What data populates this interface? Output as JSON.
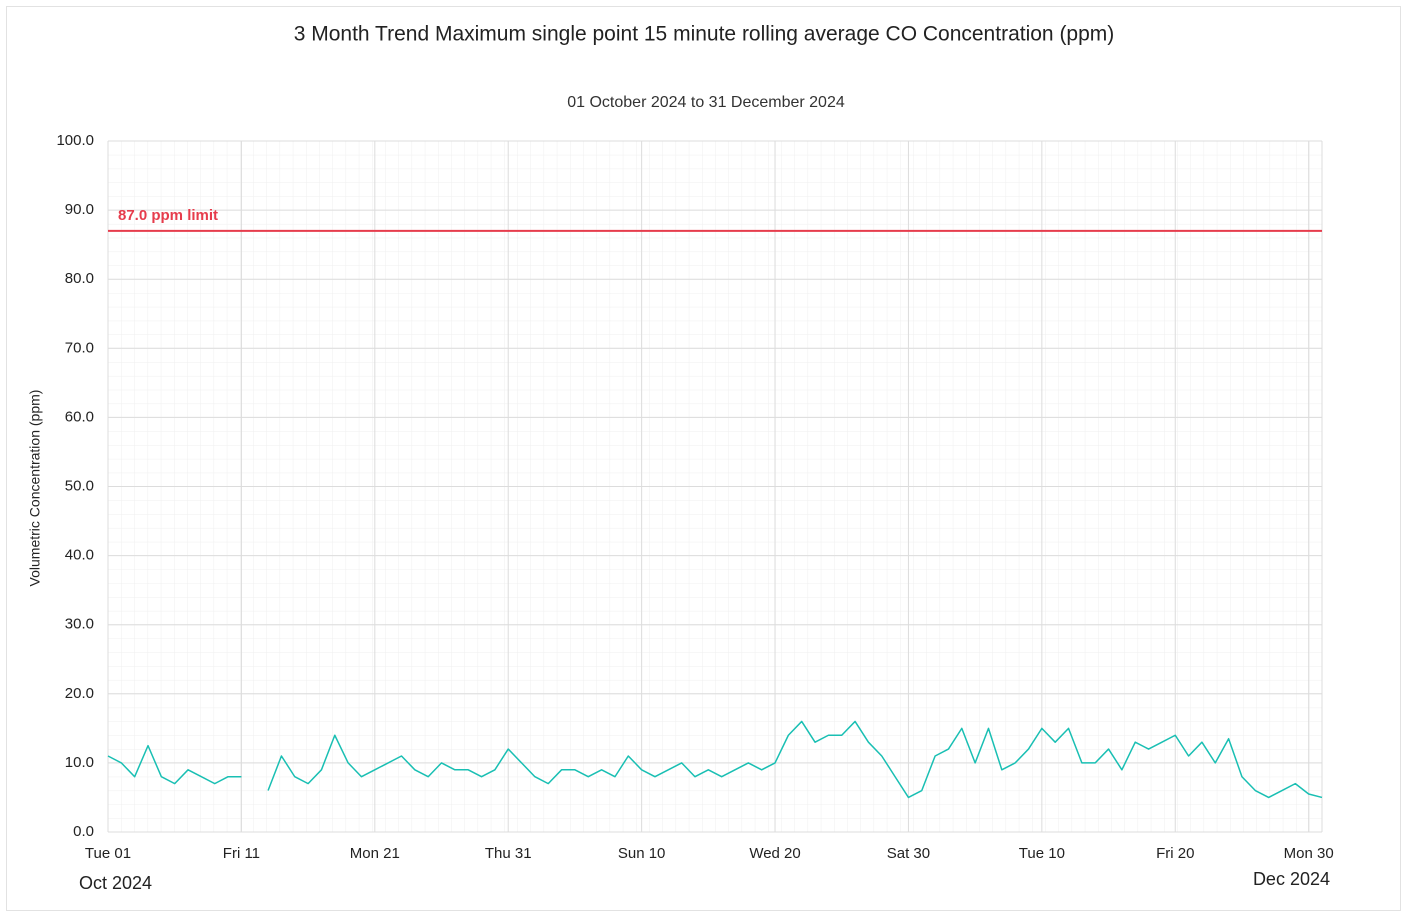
{
  "chart_data": {
    "type": "line",
    "title": "3 Month Trend Maximum single point 15 minute rolling average CO Concentration (ppm)",
    "subtitle": "01 October 2024 to 31 December 2024",
    "ylabel": "Volumetric Concentration (ppm)",
    "x_start_period": "Oct 2024",
    "x_end_period": "Dec 2024",
    "xlim": [
      "2024-10-01",
      "2024-12-31"
    ],
    "xticks": [
      {
        "value": "2024-10-01",
        "label": "Tue 01"
      },
      {
        "value": "2024-10-11",
        "label": "Fri 11"
      },
      {
        "value": "2024-10-21",
        "label": "Mon 21"
      },
      {
        "value": "2024-10-31",
        "label": "Thu 31"
      },
      {
        "value": "2024-11-10",
        "label": "Sun 10"
      },
      {
        "value": "2024-11-20",
        "label": "Wed 20"
      },
      {
        "value": "2024-11-30",
        "label": "Sat 30"
      },
      {
        "value": "2024-12-10",
        "label": "Tue 10"
      },
      {
        "value": "2024-12-20",
        "label": "Fri 20"
      },
      {
        "value": "2024-12-30",
        "label": "Mon 30"
      }
    ],
    "ylim": [
      0,
      100
    ],
    "yticks": [
      {
        "value": 0,
        "label": "0.0"
      },
      {
        "value": 10,
        "label": "10.0"
      },
      {
        "value": 20,
        "label": "20.0"
      },
      {
        "value": 30,
        "label": "30.0"
      },
      {
        "value": 40,
        "label": "40.0"
      },
      {
        "value": 50,
        "label": "50.0"
      },
      {
        "value": 60,
        "label": "60.0"
      },
      {
        "value": 70,
        "label": "70.0"
      },
      {
        "value": 80,
        "label": "80.0"
      },
      {
        "value": 90,
        "label": "90.0"
      },
      {
        "value": 100,
        "label": "100.0"
      }
    ],
    "grid": true,
    "reference_lines": [
      {
        "value": 87,
        "label": "87.0 ppm limit",
        "color": "#e63c4c"
      }
    ],
    "color": "#19bfb3",
    "x": [
      "2024-10-01",
      "2024-10-02",
      "2024-10-03",
      "2024-10-04",
      "2024-10-05",
      "2024-10-06",
      "2024-10-07",
      "2024-10-08",
      "2024-10-09",
      "2024-10-10",
      "2024-10-11",
      "2024-10-12",
      "2024-10-13",
      "2024-10-14",
      "2024-10-15",
      "2024-10-16",
      "2024-10-17",
      "2024-10-18",
      "2024-10-19",
      "2024-10-20",
      "2024-10-21",
      "2024-10-22",
      "2024-10-23",
      "2024-10-24",
      "2024-10-25",
      "2024-10-26",
      "2024-10-27",
      "2024-10-28",
      "2024-10-29",
      "2024-10-30",
      "2024-10-31",
      "2024-11-01",
      "2024-11-02",
      "2024-11-03",
      "2024-11-04",
      "2024-11-05",
      "2024-11-06",
      "2024-11-07",
      "2024-11-08",
      "2024-11-09",
      "2024-11-10",
      "2024-11-11",
      "2024-11-12",
      "2024-11-13",
      "2024-11-14",
      "2024-11-15",
      "2024-11-16",
      "2024-11-17",
      "2024-11-18",
      "2024-11-19",
      "2024-11-20",
      "2024-11-21",
      "2024-11-22",
      "2024-11-23",
      "2024-11-24",
      "2024-11-25",
      "2024-11-26",
      "2024-11-27",
      "2024-11-28",
      "2024-11-29",
      "2024-11-30",
      "2024-12-01",
      "2024-12-02",
      "2024-12-03",
      "2024-12-04",
      "2024-12-05",
      "2024-12-06",
      "2024-12-07",
      "2024-12-08",
      "2024-12-09",
      "2024-12-10",
      "2024-12-11",
      "2024-12-12",
      "2024-12-13",
      "2024-12-14",
      "2024-12-15",
      "2024-12-16",
      "2024-12-17",
      "2024-12-18",
      "2024-12-19",
      "2024-12-20",
      "2024-12-21",
      "2024-12-22",
      "2024-12-23",
      "2024-12-24",
      "2024-12-25",
      "2024-12-26",
      "2024-12-27",
      "2024-12-28",
      "2024-12-29",
      "2024-12-30",
      "2024-12-31"
    ],
    "values": [
      11,
      10,
      8,
      12.5,
      8,
      7,
      9,
      8,
      7,
      8,
      8,
      null,
      6,
      11,
      8,
      7,
      9,
      14,
      10,
      8,
      9,
      10,
      11,
      9,
      8,
      10,
      9,
      9,
      8,
      9,
      12,
      10,
      8,
      7,
      9,
      9,
      8,
      9,
      8,
      11,
      9,
      8,
      9,
      10,
      8,
      9,
      8,
      9,
      10,
      9,
      10,
      14,
      16,
      13,
      14,
      14,
      16,
      13,
      11,
      8,
      5,
      6,
      11,
      12,
      15,
      10,
      15,
      9,
      10,
      12,
      15,
      13,
      15,
      10,
      10,
      12,
      9,
      13,
      12,
      13,
      14,
      11,
      13,
      10,
      13.5,
      8,
      6,
      5,
      6,
      7,
      5.5,
      5
    ]
  }
}
